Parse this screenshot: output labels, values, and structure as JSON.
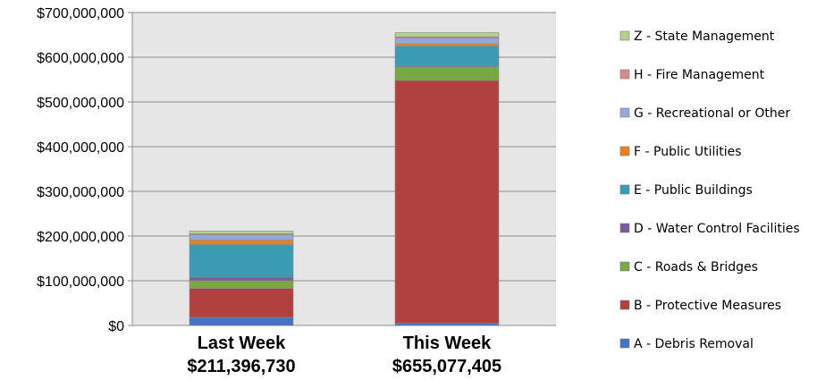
{
  "chart_data": {
    "type": "bar",
    "stacked": true,
    "categories": [
      "Last Week",
      "This Week"
    ],
    "category_totals": [
      "$211,396,730",
      "$655,077,405"
    ],
    "ylim": [
      0,
      700000000
    ],
    "yticks": [
      0,
      100000000,
      200000000,
      300000000,
      400000000,
      500000000,
      600000000,
      700000000
    ],
    "ytick_labels": [
      "$0",
      "$100,000,000",
      "$200,000,000",
      "$300,000,000",
      "$400,000,000",
      "$500,000,000",
      "$600,000,000",
      "$700,000,000"
    ],
    "grid": true,
    "legend_position": "right",
    "series": [
      {
        "name": "A - Debris Removal",
        "color": "#4472C4",
        "values": [
          18000000,
          5000000
        ]
      },
      {
        "name": "B - Protective Measures",
        "color": "#B0413E",
        "values": [
          65000000,
          543000000
        ]
      },
      {
        "name": "C - Roads & Bridges",
        "color": "#77A844",
        "values": [
          17000000,
          30000000
        ]
      },
      {
        "name": "D - Water Control Facilities",
        "color": "#7A5C9E",
        "values": [
          8000000,
          2000000
        ]
      },
      {
        "name": "E - Public Buildings",
        "color": "#3A9BB3",
        "values": [
          73000000,
          45000000
        ]
      },
      {
        "name": "F - Public Utilities",
        "color": "#E8821E",
        "values": [
          10000000,
          5000000
        ]
      },
      {
        "name": "G - Recreational or Other",
        "color": "#93A9D9",
        "values": [
          12000000,
          13000000
        ]
      },
      {
        "name": "H - Fire Management",
        "color": "#D98A8A",
        "values": [
          2000000,
          3000000
        ]
      },
      {
        "name": "Z - State Management",
        "color": "#B5D18F",
        "values": [
          6396730,
          9077405
        ]
      }
    ]
  }
}
